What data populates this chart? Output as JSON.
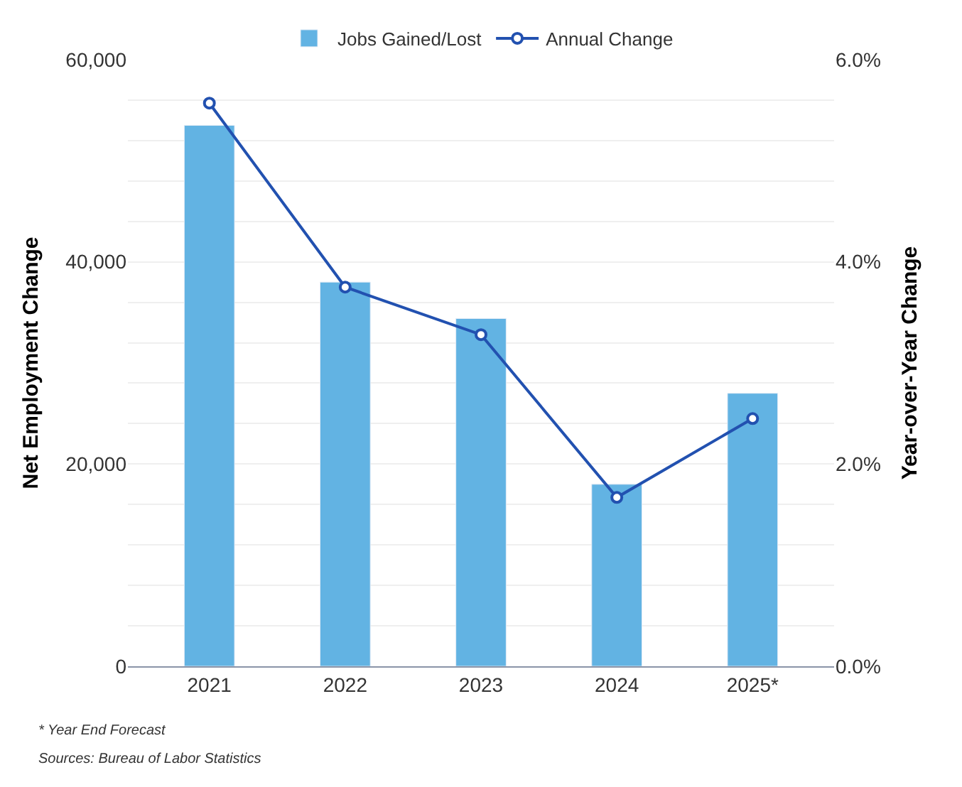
{
  "chart_data": {
    "type": "bar",
    "categories": [
      "2021",
      "2022",
      "2023",
      "2024",
      "2025*"
    ],
    "series": [
      {
        "name": "Jobs Gained/Lost",
        "color": "#62b3e3",
        "values": [
          53500,
          38000,
          34400,
          18000,
          27000
        ]
      },
      {
        "name": "Annual Change",
        "type": "line",
        "axis": "y2",
        "color": "#2251b0",
        "marker": "circle",
        "values": [
          5.57,
          3.75,
          3.28,
          1.67,
          2.45
        ]
      }
    ],
    "ylabel": "Net Employment Change",
    "y2label": "Year-over-Year Change",
    "ylim": [
      0,
      60000
    ],
    "yticks": [
      {
        "value": 0,
        "label": "0"
      },
      {
        "value": 4000,
        "label": null
      },
      {
        "value": 8000,
        "label": null
      },
      {
        "value": 12000,
        "label": null
      },
      {
        "value": 16000,
        "label": null
      },
      {
        "value": 20000,
        "label": "20,000"
      },
      {
        "value": 24000,
        "label": null
      },
      {
        "value": 28000,
        "label": null
      },
      {
        "value": 32000,
        "label": null
      },
      {
        "value": 36000,
        "label": null
      },
      {
        "value": 40000,
        "label": "40,000"
      },
      {
        "value": 44000,
        "label": null
      },
      {
        "value": 48000,
        "label": null
      },
      {
        "value": 52000,
        "label": null
      },
      {
        "value": 56000,
        "label": null
      },
      {
        "value": 60000,
        "label": "60,000"
      }
    ],
    "y2lim": [
      0,
      6
    ],
    "y2ticks": [
      {
        "value": 0,
        "label": "0.0%"
      },
      {
        "value": 2,
        "label": "2.0%"
      },
      {
        "value": 4,
        "label": "4.0%"
      },
      {
        "value": 6,
        "label": "6.0%"
      }
    ],
    "grid": "y",
    "legend": "top",
    "annotations": [
      "* Year End Forecast",
      "Sources: Bureau of Labor Statistics"
    ]
  }
}
